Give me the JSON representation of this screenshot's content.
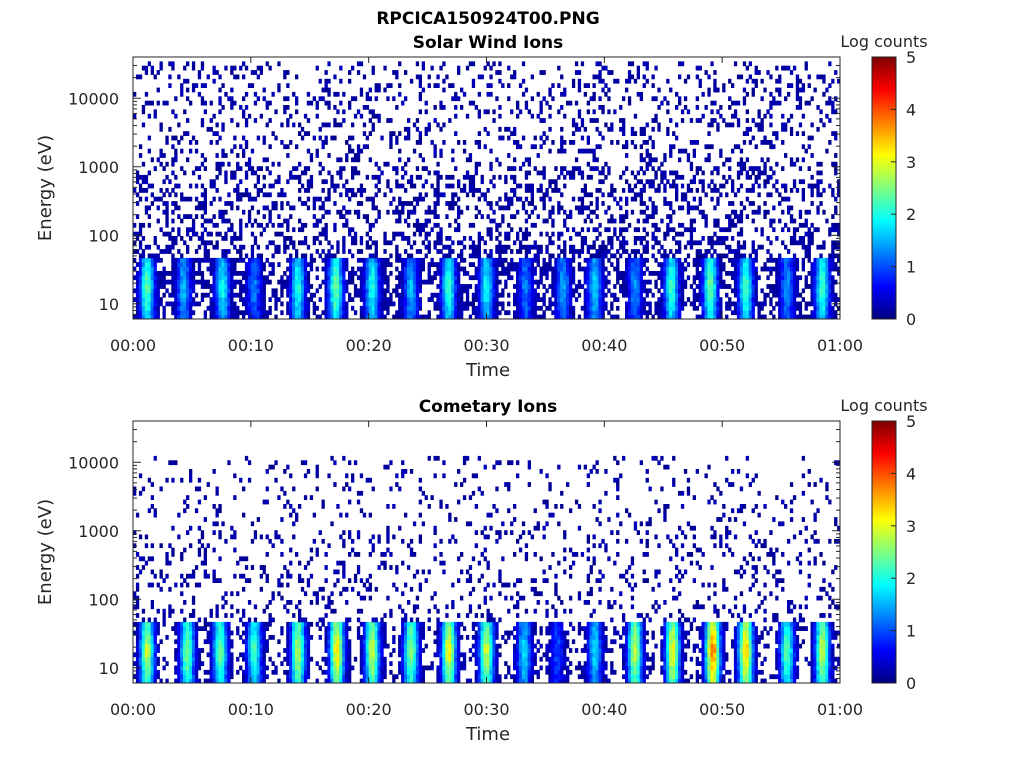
{
  "figure_title": "RPCICA150924T00.PNG",
  "colorscale_stops": [
    "#00007f",
    "#0000ff",
    "#007fff",
    "#00ffff",
    "#7fff7f",
    "#ffff00",
    "#ff7f00",
    "#ff0000",
    "#7f0000"
  ],
  "chart_data": [
    {
      "type": "heatmap",
      "title": "Solar Wind Ions",
      "xlabel": "Time",
      "ylabel": "Energy (eV)",
      "x_tick_labels": [
        "00:00",
        "00:10",
        "00:20",
        "00:30",
        "00:40",
        "00:50",
        "01:00"
      ],
      "x_range_minutes": [
        0,
        60
      ],
      "y_scale": "log",
      "y_tick_values": [
        10,
        100,
        1000,
        10000
      ],
      "y_tick_labels": [
        "10",
        "100",
        "1000",
        "10000"
      ],
      "y_range": [
        6,
        40000
      ],
      "colorbar": {
        "label": "Log counts",
        "range": [
          0,
          5
        ],
        "tick_labels": [
          "0",
          "1",
          "2",
          "3",
          "4",
          "5"
        ]
      },
      "bursts": [
        {
          "t": 1.2,
          "peak": 2.4
        },
        {
          "t": 4.3,
          "peak": 1.6
        },
        {
          "t": 7.6,
          "peak": 2.0
        },
        {
          "t": 10.3,
          "peak": 1.3
        },
        {
          "t": 14.0,
          "peak": 2.1
        },
        {
          "t": 17.2,
          "peak": 2.5
        },
        {
          "t": 20.3,
          "peak": 2.1
        },
        {
          "t": 23.6,
          "peak": 1.6
        },
        {
          "t": 26.8,
          "peak": 2.2
        },
        {
          "t": 30.0,
          "peak": 2.0
        },
        {
          "t": 33.3,
          "peak": 1.3
        },
        {
          "t": 36.5,
          "peak": 1.5
        },
        {
          "t": 39.2,
          "peak": 1.8
        },
        {
          "t": 42.6,
          "peak": 1.4
        },
        {
          "t": 45.7,
          "peak": 2.2
        },
        {
          "t": 49.0,
          "peak": 2.5
        },
        {
          "t": 52.0,
          "peak": 2.3
        },
        {
          "t": 55.5,
          "peak": 1.4
        },
        {
          "t": 58.5,
          "peak": 2.3
        }
      ],
      "background": {
        "e_low": 6,
        "e_high": 35000,
        "level": 0.3
      }
    },
    {
      "type": "heatmap",
      "title": "Cometary Ions",
      "xlabel": "Time",
      "ylabel": "Energy (eV)",
      "x_tick_labels": [
        "00:00",
        "00:10",
        "00:20",
        "00:30",
        "00:40",
        "00:50",
        "01:00"
      ],
      "x_range_minutes": [
        0,
        60
      ],
      "y_scale": "log",
      "y_tick_values": [
        10,
        100,
        1000,
        10000
      ],
      "y_tick_labels": [
        "10",
        "100",
        "1000",
        "10000"
      ],
      "y_range": [
        6,
        40000
      ],
      "colorbar": {
        "label": "Log counts",
        "range": [
          0,
          5
        ],
        "tick_labels": [
          "0",
          "1",
          "2",
          "3",
          "4",
          "5"
        ]
      },
      "bursts": [
        {
          "t": 1.2,
          "peak": 2.9
        },
        {
          "t": 4.6,
          "peak": 2.6
        },
        {
          "t": 7.4,
          "peak": 2.5
        },
        {
          "t": 10.3,
          "peak": 2.3
        },
        {
          "t": 14.0,
          "peak": 2.9
        },
        {
          "t": 17.3,
          "peak": 3.3
        },
        {
          "t": 20.3,
          "peak": 3.0
        },
        {
          "t": 23.6,
          "peak": 2.7
        },
        {
          "t": 26.8,
          "peak": 3.2
        },
        {
          "t": 30.0,
          "peak": 3.0
        },
        {
          "t": 33.2,
          "peak": 1.8
        },
        {
          "t": 36.0,
          "peak": 1.0
        },
        {
          "t": 39.2,
          "peak": 1.8
        },
        {
          "t": 42.6,
          "peak": 3.0
        },
        {
          "t": 45.8,
          "peak": 3.2
        },
        {
          "t": 49.2,
          "peak": 3.9
        },
        {
          "t": 52.0,
          "peak": 3.5
        },
        {
          "t": 55.5,
          "peak": 2.4
        },
        {
          "t": 58.5,
          "peak": 3.0
        }
      ],
      "background": {
        "e_low": 6,
        "e_high": 12000,
        "level": 0.15
      }
    }
  ]
}
